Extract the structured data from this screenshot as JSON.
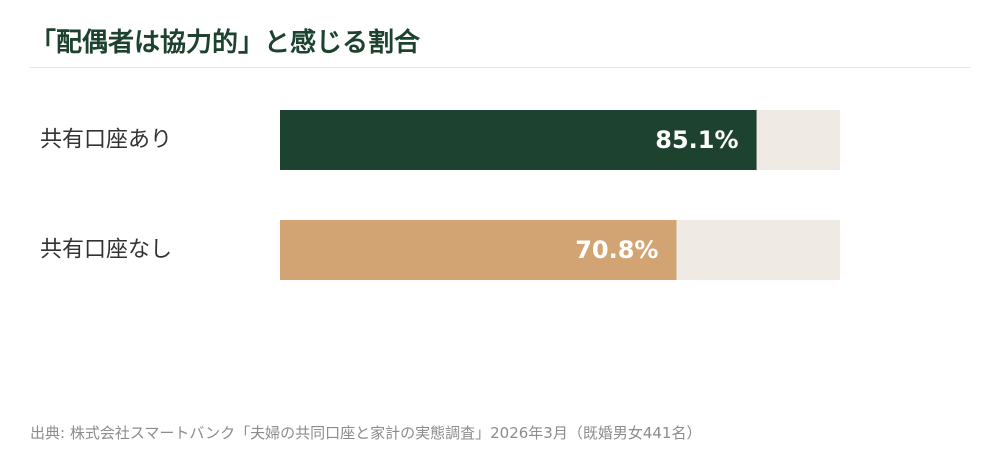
{
  "title": "「配偶者は協力的」と感じる割合",
  "source": "出典: 株式会社スマートバンク「夫婦の共同口座と家計の実態調査」2026年3月（既婚男女441名）",
  "chart_data": {
    "type": "bar",
    "orientation": "horizontal",
    "unit": "%",
    "xlim": [
      0,
      100
    ],
    "grid": false,
    "colors": {
      "track": "#efebe4",
      "label_text": "#ffffff"
    },
    "categories": [
      "共有口座あり",
      "共有口座なし"
    ],
    "values": [
      85.1,
      70.8
    ],
    "value_labels": [
      "85.1%",
      "70.8%"
    ],
    "bar_colors": [
      "#1e4230",
      "#d2a474"
    ]
  }
}
